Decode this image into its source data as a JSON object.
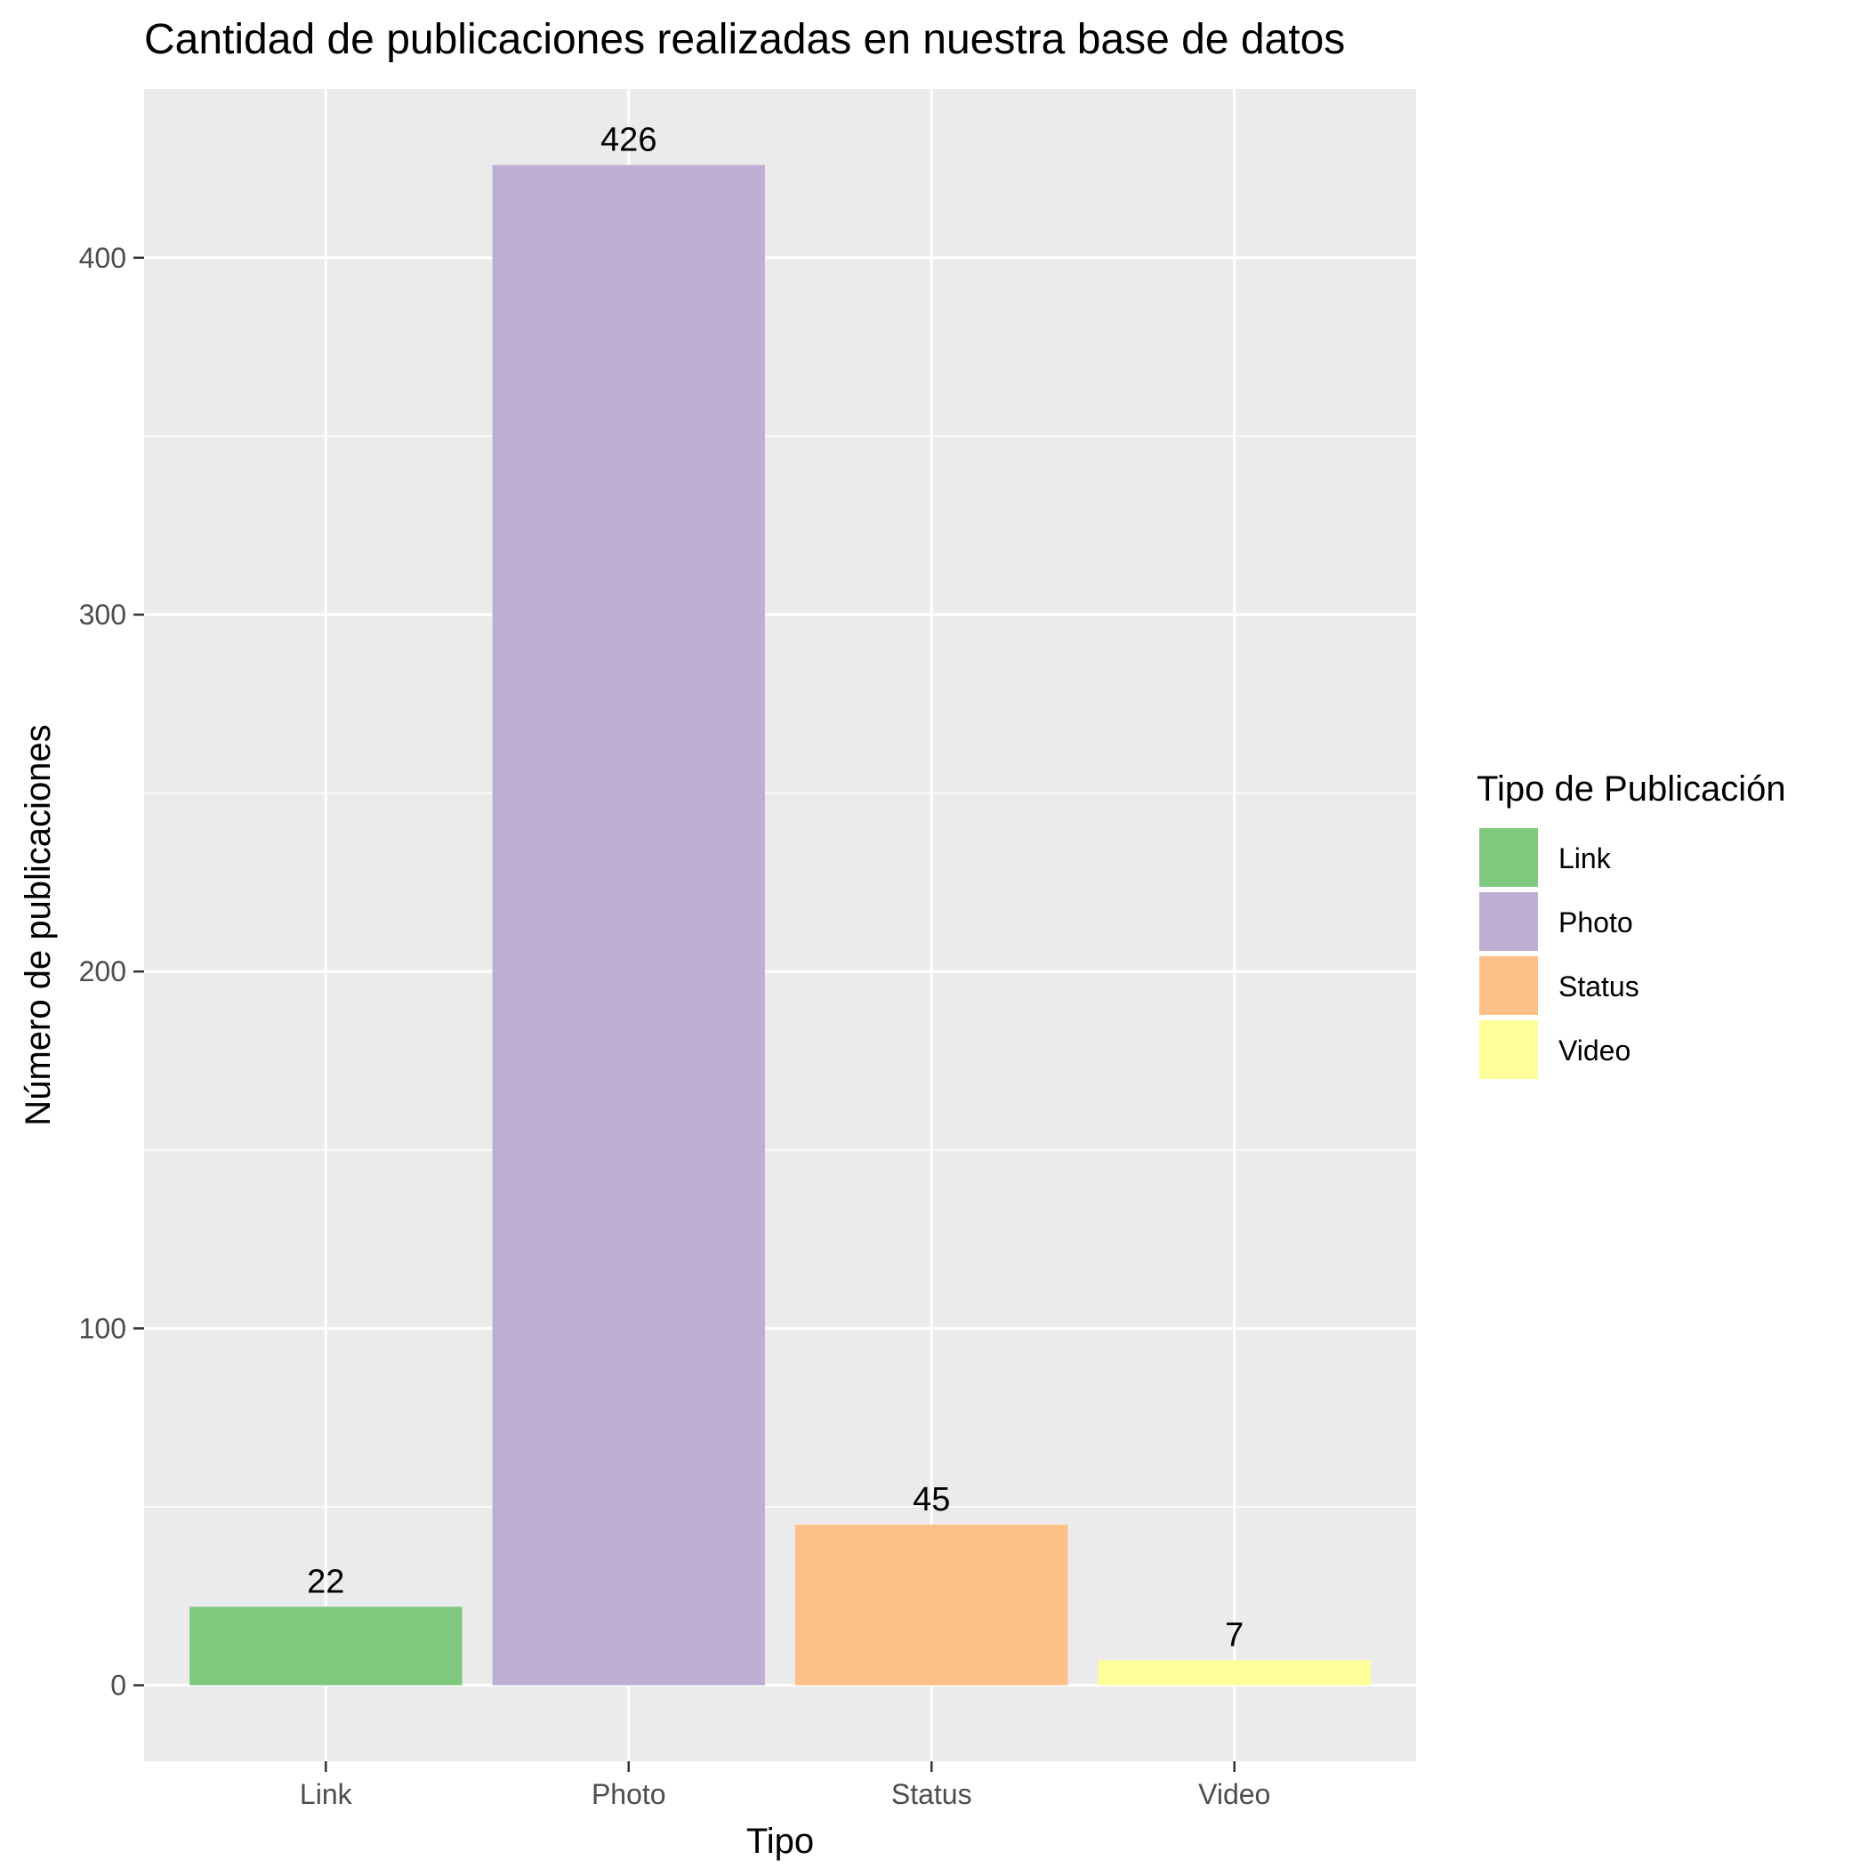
{
  "chart_data": {
    "type": "bar",
    "title": "Cantidad de publicaciones realizadas en nuestra base de datos",
    "xlabel": "Tipo",
    "ylabel": "Número de publicaciones",
    "categories": [
      "Link",
      "Photo",
      "Status",
      "Video"
    ],
    "values": [
      22,
      426,
      45,
      7
    ],
    "data_labels": [
      "22",
      "426",
      "45",
      "7"
    ],
    "colors": [
      "#7fc97f",
      "#beaed4",
      "#fdc086",
      "#ffff99"
    ],
    "ylim": [
      -21.3,
      447.3
    ],
    "yticks": [
      0,
      100,
      200,
      300,
      400
    ],
    "yticks_minor": [
      50,
      150,
      250,
      350
    ],
    "grid": true,
    "legend": {
      "title": "Tipo de Publicación",
      "position": "right",
      "entries": [
        "Link",
        "Photo",
        "Status",
        "Video"
      ]
    },
    "panel_background": "#ebebeb",
    "grid_color": "#ffffff"
  }
}
